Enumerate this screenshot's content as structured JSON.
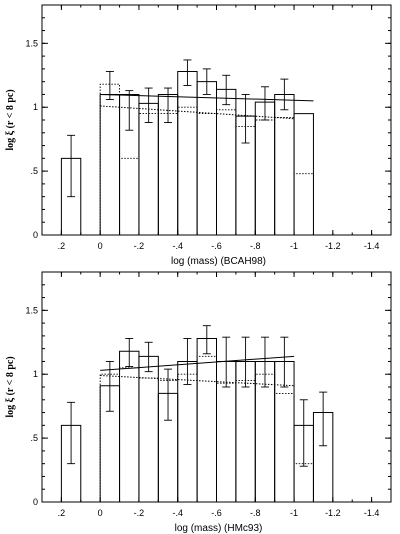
{
  "chart_data": [
    {
      "type": "bar",
      "xlabel": "log (mass) (BCAH98)",
      "ylabel": "log ξ (r < 8 pc)",
      "xlim": [
        0.3,
        -1.5
      ],
      "ylim": [
        0,
        1.8
      ],
      "xticks": [
        0.2,
        0,
        -0.2,
        -0.4,
        -0.6,
        -0.8,
        -1,
        -1.2,
        -1.4
      ],
      "xtick_labels": [
        ".2",
        "0",
        "-.2",
        "-.4",
        "-.6",
        "-.8",
        "-1",
        "-1.2",
        "-1.4"
      ],
      "yticks": [
        0,
        0.5,
        1,
        1.5
      ],
      "ytick_labels": [
        "0",
        ".5",
        "1",
        "1.5"
      ],
      "solid_hist": [
        {
          "x0": 0.2,
          "x1": 0.1,
          "y": 0.6
        },
        {
          "x0": 0.0,
          "x1": -0.1,
          "y": 1.1
        },
        {
          "x0": -0.1,
          "x1": -0.2,
          "y": 1.1
        },
        {
          "x0": -0.2,
          "x1": -0.3,
          "y": 1.03
        },
        {
          "x0": -0.3,
          "x1": -0.4,
          "y": 1.1
        },
        {
          "x0": -0.4,
          "x1": -0.5,
          "y": 1.28
        },
        {
          "x0": -0.5,
          "x1": -0.6,
          "y": 1.2
        },
        {
          "x0": -0.6,
          "x1": -0.7,
          "y": 1.14
        },
        {
          "x0": -0.7,
          "x1": -0.8,
          "y": 0.93
        },
        {
          "x0": -0.8,
          "x1": -0.9,
          "y": 1.04
        },
        {
          "x0": -0.9,
          "x1": -1.0,
          "y": 1.1
        },
        {
          "x0": -1.0,
          "x1": -1.1,
          "y": 0.95
        }
      ],
      "dotted_hist": [
        {
          "x0": 0.0,
          "x1": -0.1,
          "y": 1.18
        },
        {
          "x0": -0.1,
          "x1": -0.2,
          "y": 0.6
        },
        {
          "x0": -0.2,
          "x1": -0.3,
          "y": 0.95
        },
        {
          "x0": -0.3,
          "x1": -0.4,
          "y": 0.95
        },
        {
          "x0": -0.4,
          "x1": -0.5,
          "y": 1.0
        },
        {
          "x0": -0.5,
          "x1": -0.6,
          "y": 0.95
        },
        {
          "x0": -0.6,
          "x1": -0.7,
          "y": 0.98
        },
        {
          "x0": -0.7,
          "x1": -0.8,
          "y": 0.85
        },
        {
          "x0": -0.8,
          "x1": -0.9,
          "y": 0.9
        },
        {
          "x0": -0.9,
          "x1": -1.0,
          "y": 0.92
        },
        {
          "x0": -1.0,
          "x1": -1.1,
          "y": 0.48
        }
      ],
      "error_bars": [
        {
          "x": 0.15,
          "low": 0.3,
          "high": 0.78
        },
        {
          "x": -0.05,
          "low": 1.06,
          "high": 1.28
        },
        {
          "x": -0.15,
          "low": 0.82,
          "high": 1.13
        },
        {
          "x": -0.25,
          "low": 0.88,
          "high": 1.15
        },
        {
          "x": -0.35,
          "low": 0.88,
          "high": 1.15
        },
        {
          "x": -0.45,
          "low": 1.17,
          "high": 1.37
        },
        {
          "x": -0.55,
          "low": 1.1,
          "high": 1.3
        },
        {
          "x": -0.65,
          "low": 1.02,
          "high": 1.25
        },
        {
          "x": -0.75,
          "low": 0.72,
          "high": 1.1
        },
        {
          "x": -0.85,
          "low": 0.9,
          "high": 1.16
        },
        {
          "x": -0.95,
          "low": 0.98,
          "high": 1.22
        }
      ],
      "solid_line": {
        "x": [
          0.0,
          -1.1
        ],
        "y": [
          1.1,
          1.05
        ]
      },
      "dotted_line": {
        "x": [
          0.0,
          -1.0
        ],
        "y": [
          1.01,
          0.91
        ]
      }
    },
    {
      "type": "bar",
      "xlabel": "log (mass) (HMc93)",
      "ylabel": "log ξ (r < 8 pc)",
      "xlim": [
        0.3,
        -1.5
      ],
      "ylim": [
        0,
        1.8
      ],
      "xticks": [
        0.2,
        0,
        -0.2,
        -0.4,
        -0.6,
        -0.8,
        -1,
        -1.2,
        -1.4
      ],
      "xtick_labels": [
        ".2",
        "0",
        "-.2",
        "-.4",
        "-.6",
        "-.8",
        "-1",
        "-1.2",
        "-1.4"
      ],
      "yticks": [
        0,
        0.5,
        1,
        1.5
      ],
      "ytick_labels": [
        "0",
        ".5",
        "1",
        "1.5"
      ],
      "solid_hist": [
        {
          "x0": 0.2,
          "x1": 0.1,
          "y": 0.6
        },
        {
          "x0": 0.0,
          "x1": -0.1,
          "y": 0.91
        },
        {
          "x0": -0.1,
          "x1": -0.2,
          "y": 1.18
        },
        {
          "x0": -0.2,
          "x1": -0.3,
          "y": 1.14
        },
        {
          "x0": -0.3,
          "x1": -0.4,
          "y": 0.85
        },
        {
          "x0": -0.4,
          "x1": -0.5,
          "y": 1.1
        },
        {
          "x0": -0.5,
          "x1": -0.6,
          "y": 1.28
        },
        {
          "x0": -0.6,
          "x1": -0.7,
          "y": 1.1
        },
        {
          "x0": -0.7,
          "x1": -0.8,
          "y": 1.1
        },
        {
          "x0": -0.8,
          "x1": -0.9,
          "y": 1.1
        },
        {
          "x0": -0.9,
          "x1": -1.0,
          "y": 1.1
        },
        {
          "x0": -1.0,
          "x1": -1.1,
          "y": 0.6
        },
        {
          "x0": -1.1,
          "x1": -1.2,
          "y": 0.7
        }
      ],
      "dotted_hist": [
        {
          "x0": 0.0,
          "x1": -0.1,
          "y": 1.0
        },
        {
          "x0": -0.1,
          "x1": -0.2,
          "y": 1.05
        },
        {
          "x0": -0.2,
          "x1": -0.3,
          "y": 0.97
        },
        {
          "x0": -0.3,
          "x1": -0.4,
          "y": 0.95
        },
        {
          "x0": -0.4,
          "x1": -0.5,
          "y": 1.0
        },
        {
          "x0": -0.5,
          "x1": -0.6,
          "y": 1.14
        },
        {
          "x0": -0.6,
          "x1": -0.7,
          "y": 0.93
        },
        {
          "x0": -0.7,
          "x1": -0.8,
          "y": 0.95
        },
        {
          "x0": -0.8,
          "x1": -0.9,
          "y": 1.0
        },
        {
          "x0": -0.9,
          "x1": -1.0,
          "y": 0.85
        },
        {
          "x0": -1.0,
          "x1": -1.1,
          "y": 0.3
        }
      ],
      "error_bars": [
        {
          "x": 0.15,
          "low": 0.3,
          "high": 0.78
        },
        {
          "x": -0.05,
          "low": 0.71,
          "high": 1.1
        },
        {
          "x": -0.15,
          "low": 1.06,
          "high": 1.28
        },
        {
          "x": -0.25,
          "low": 1.02,
          "high": 1.25
        },
        {
          "x": -0.35,
          "low": 0.64,
          "high": 1.04
        },
        {
          "x": -0.45,
          "low": 0.92,
          "high": 1.28
        },
        {
          "x": -0.55,
          "low": 1.16,
          "high": 1.38
        },
        {
          "x": -0.65,
          "low": 0.9,
          "high": 1.29
        },
        {
          "x": -0.75,
          "low": 0.9,
          "high": 1.29
        },
        {
          "x": -0.85,
          "low": 0.9,
          "high": 1.29
        },
        {
          "x": -0.95,
          "low": 0.9,
          "high": 1.29
        },
        {
          "x": -1.05,
          "low": 0.28,
          "high": 0.8
        },
        {
          "x": -1.15,
          "low": 0.44,
          "high": 0.86
        }
      ],
      "solid_line": {
        "x": [
          0.0,
          -1.0
        ],
        "y": [
          1.03,
          1.14
        ]
      },
      "dotted_line": {
        "x": [
          0.0,
          -1.0
        ],
        "y": [
          0.99,
          0.91
        ]
      }
    }
  ]
}
